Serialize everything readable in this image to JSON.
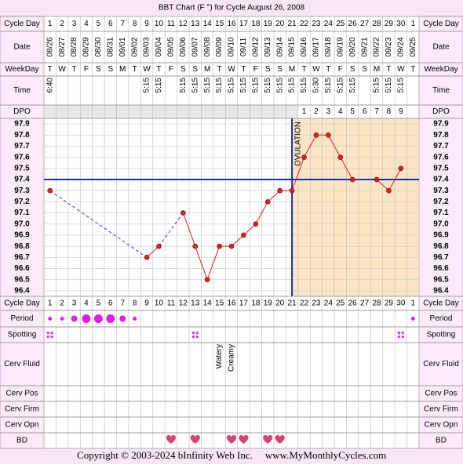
{
  "title": "BBT Chart (F °) for Cycle August 26, 2008",
  "row_labels": {
    "cycle_day": "Cycle Day",
    "date": "Date",
    "weekday": "WeekDay",
    "time": "Time",
    "dpo": "DPO",
    "period": "Period",
    "spotting": "Spotting",
    "cerv_fluid": "Cerv Fluid",
    "cerv_pos": "Cerv Pos",
    "cerv_firm": "Cerv Firm",
    "cerv_opn": "Cerv Opn",
    "bd": "BD"
  },
  "chart_data": {
    "type": "line",
    "categories": [
      1,
      2,
      3,
      4,
      5,
      6,
      7,
      8,
      9,
      10,
      11,
      12,
      13,
      14,
      15,
      16,
      17,
      18,
      19,
      20,
      21,
      22,
      23,
      24,
      25,
      26,
      27,
      28,
      29,
      30,
      1
    ],
    "dates": [
      "08/26",
      "08/27",
      "08/28",
      "08/29",
      "08/30",
      "08/31",
      "09/01",
      "09/02",
      "09/03",
      "09/04",
      "09/05",
      "09/06",
      "09/07",
      "09/08",
      "09/09",
      "09/10",
      "09/11",
      "09/12",
      "09/13",
      "09/14",
      "09/15",
      "09/16",
      "09/17",
      "09/18",
      "09/19",
      "09/20",
      "09/21",
      "09/22",
      "09/23",
      "09/24",
      "09/25"
    ],
    "weekdays": [
      "T",
      "W",
      "T",
      "F",
      "S",
      "S",
      "M",
      "T",
      "W",
      "T",
      "F",
      "S",
      "S",
      "M",
      "T",
      "W",
      "T",
      "F",
      "S",
      "S",
      "M",
      "T",
      "W",
      "T",
      "F",
      "S",
      "S",
      "M",
      "T",
      "W",
      "T"
    ],
    "times": [
      "6:40",
      null,
      null,
      null,
      null,
      null,
      null,
      null,
      "5:15",
      "5:15",
      null,
      "5:15",
      "5:15",
      "5:15",
      "5:15",
      "5:15",
      "5:15",
      "5:15",
      "5:15",
      "5:15",
      "5:15",
      "5:15",
      "5:30",
      "5:15",
      "5:15",
      "5:15",
      null,
      "5:15",
      "5:15",
      "5:15",
      null
    ],
    "dpo": [
      null,
      null,
      null,
      null,
      null,
      null,
      null,
      null,
      null,
      null,
      null,
      null,
      null,
      null,
      null,
      null,
      null,
      null,
      null,
      null,
      null,
      1,
      2,
      3,
      4,
      5,
      6,
      7,
      8,
      9,
      null
    ],
    "values": [
      97.3,
      null,
      null,
      null,
      null,
      null,
      null,
      null,
      96.7,
      96.8,
      null,
      97.1,
      96.8,
      96.5,
      96.8,
      96.8,
      96.9,
      97.0,
      97.2,
      97.3,
      97.3,
      97.6,
      97.8,
      97.8,
      97.6,
      97.4,
      null,
      97.4,
      97.3,
      97.5,
      null
    ],
    "color": "#e02020",
    "ylim": [
      96.35,
      97.95
    ],
    "yticks": [
      97.9,
      97.8,
      97.7,
      97.6,
      97.5,
      97.4,
      97.3,
      97.2,
      97.1,
      {
        "value": 97.0,
        "label": "97.0"
      },
      96.9,
      96.8,
      96.7,
      96.6,
      96.5,
      96.4
    ],
    "grid": true,
    "coverline": 97.4,
    "coverline_color": "#1a2fb0",
    "ovulation": {
      "label": "OVULATION",
      "day": 21
    },
    "period": [
      1,
      1,
      2,
      3,
      3,
      3,
      2,
      1,
      null,
      null,
      null,
      null,
      null,
      null,
      null,
      null,
      null,
      null,
      null,
      null,
      null,
      null,
      null,
      null,
      null,
      null,
      null,
      null,
      null,
      null,
      1
    ],
    "spotting": [
      true,
      false,
      false,
      false,
      false,
      false,
      false,
      false,
      false,
      false,
      false,
      false,
      true,
      false,
      false,
      false,
      false,
      false,
      false,
      false,
      false,
      false,
      false,
      false,
      false,
      false,
      false,
      false,
      false,
      true,
      false
    ],
    "cerv_fluid": [
      null,
      null,
      null,
      null,
      null,
      null,
      null,
      null,
      null,
      null,
      null,
      null,
      null,
      null,
      "Watery",
      "Creamy",
      null,
      null,
      null,
      null,
      null,
      null,
      null,
      null,
      null,
      null,
      null,
      null,
      null,
      null,
      null
    ],
    "bd": [
      false,
      false,
      false,
      false,
      false,
      false,
      false,
      false,
      false,
      false,
      true,
      false,
      true,
      false,
      false,
      true,
      true,
      false,
      true,
      true,
      false,
      false,
      false,
      false,
      false,
      false,
      false,
      false,
      false,
      false,
      false
    ]
  },
  "footer": {
    "copyright": "Copyright © 2003-2024 bInfinity Web Inc.",
    "site": "www.MyMonthlyCycles.com"
  }
}
